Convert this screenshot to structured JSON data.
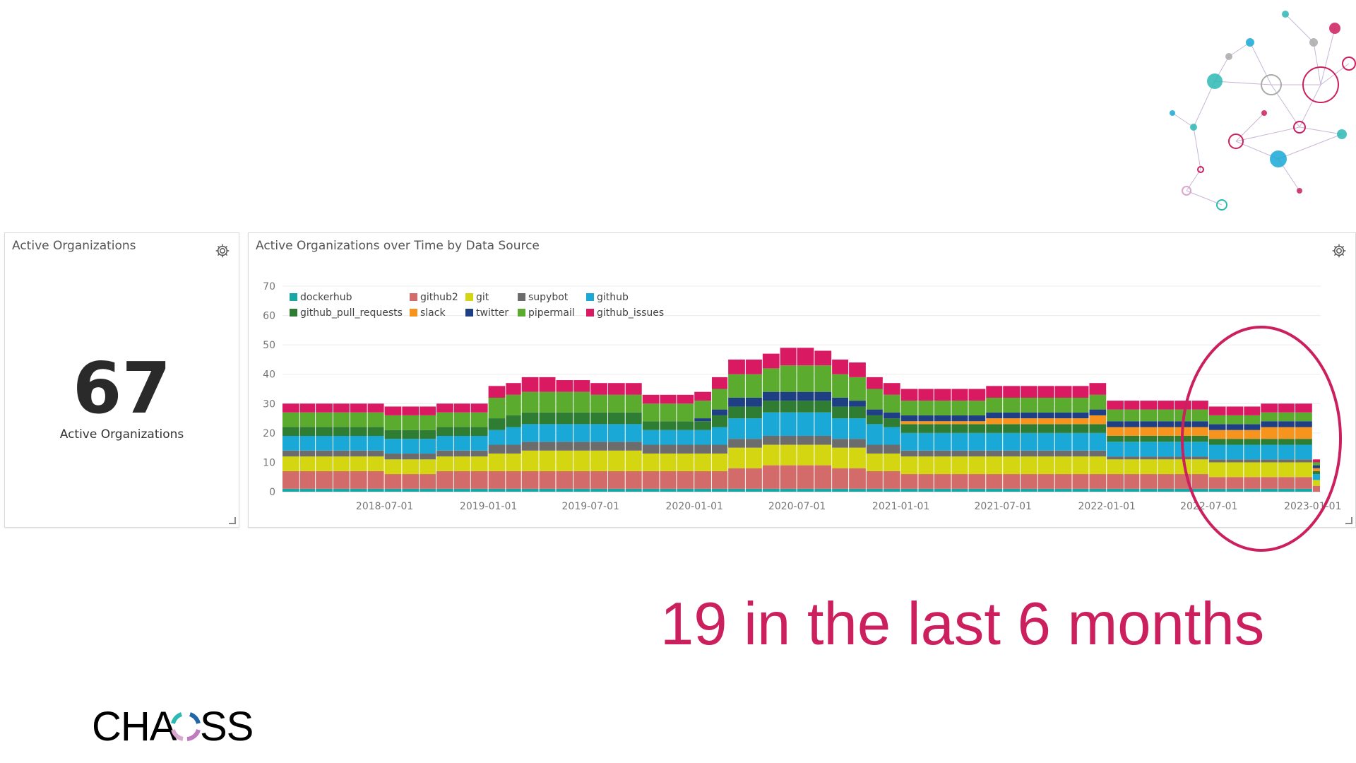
{
  "metric_panel": {
    "title": "Active Organizations",
    "value": "67",
    "label": "Active Organizations"
  },
  "chart_panel": {
    "title": "Active Organizations over Time by Data Source"
  },
  "headline": "19 in the last 6 months",
  "logo": {
    "text_left": "CHA",
    "text_right": "SS"
  },
  "colors": {
    "accent": "#cc1f5e",
    "dockerhub": "#17a7a7",
    "github2": "#d36b6b",
    "git": "#d4d611",
    "supybot": "#6c6c6c",
    "github": "#1aa8d6",
    "github_pull_requests": "#2e7d32",
    "slack": "#f7941d",
    "twitter": "#1f3f85",
    "pipermail": "#5bab2f",
    "github_issues": "#d91a63"
  },
  "chart_data": {
    "type": "bar",
    "stacked": true,
    "xlabel": "",
    "ylabel": "",
    "ylim": [
      0,
      70
    ],
    "yticks": [
      0,
      10,
      20,
      30,
      40,
      50,
      60,
      70
    ],
    "xticks": [
      "2018-07-01",
      "2019-01-01",
      "2019-07-01",
      "2020-01-01",
      "2020-07-01",
      "2021-01-01",
      "2021-07-01",
      "2022-01-01",
      "2022-07-01",
      "2023-01-01"
    ],
    "x_start": "2018-01-01",
    "x_end": "2023-01-15",
    "legend_position": "top-left",
    "legend": [
      "dockerhub",
      "github2",
      "git",
      "supybot",
      "github",
      "github_pull_requests",
      "slack",
      "twitter",
      "pipermail",
      "github_issues"
    ],
    "categories": [
      "2018-01",
      "2018-02",
      "2018-03",
      "2018-04",
      "2018-05",
      "2018-06",
      "2018-07",
      "2018-08",
      "2018-09",
      "2018-10",
      "2018-11",
      "2018-12",
      "2019-01",
      "2019-02",
      "2019-03",
      "2019-04",
      "2019-05",
      "2019-06",
      "2019-07",
      "2019-08",
      "2019-09",
      "2019-10",
      "2019-11",
      "2019-12",
      "2020-01",
      "2020-02",
      "2020-03",
      "2020-04",
      "2020-05",
      "2020-06",
      "2020-07",
      "2020-08",
      "2020-09",
      "2020-10",
      "2020-11",
      "2020-12",
      "2021-01",
      "2021-02",
      "2021-03",
      "2021-04",
      "2021-05",
      "2021-06",
      "2021-07",
      "2021-08",
      "2021-09",
      "2021-10",
      "2021-11",
      "2021-12",
      "2022-01",
      "2022-02",
      "2022-03",
      "2022-04",
      "2022-05",
      "2022-06",
      "2022-07",
      "2022-08",
      "2022-09",
      "2022-10",
      "2022-11",
      "2022-12",
      "2023-01"
    ],
    "series": [
      {
        "name": "dockerhub",
        "values": [
          1,
          1,
          1,
          1,
          1,
          1,
          1,
          1,
          1,
          1,
          1,
          1,
          1,
          1,
          1,
          1,
          1,
          1,
          1,
          1,
          1,
          1,
          1,
          1,
          1,
          1,
          1,
          1,
          1,
          1,
          1,
          1,
          1,
          1,
          1,
          1,
          1,
          1,
          1,
          1,
          1,
          1,
          1,
          1,
          1,
          1,
          1,
          1,
          1,
          1,
          1,
          1,
          1,
          1,
          1,
          1,
          1,
          1,
          1,
          1,
          0
        ]
      },
      {
        "name": "github2",
        "values": [
          6,
          6,
          6,
          6,
          6,
          6,
          5,
          5,
          5,
          6,
          6,
          6,
          6,
          6,
          6,
          6,
          6,
          6,
          6,
          6,
          6,
          6,
          6,
          6,
          6,
          6,
          7,
          7,
          8,
          8,
          8,
          8,
          7,
          7,
          6,
          6,
          5,
          5,
          5,
          5,
          5,
          5,
          5,
          5,
          5,
          5,
          5,
          5,
          5,
          5,
          5,
          5,
          5,
          5,
          4,
          4,
          4,
          4,
          4,
          4,
          2
        ]
      },
      {
        "name": "git",
        "values": [
          5,
          5,
          5,
          5,
          5,
          5,
          5,
          5,
          5,
          5,
          5,
          5,
          6,
          6,
          7,
          7,
          7,
          7,
          7,
          7,
          7,
          6,
          6,
          6,
          6,
          6,
          7,
          7,
          7,
          7,
          7,
          7,
          7,
          7,
          6,
          6,
          6,
          6,
          6,
          6,
          6,
          6,
          6,
          6,
          6,
          6,
          6,
          6,
          5,
          5,
          5,
          5,
          5,
          5,
          5,
          5,
          5,
          5,
          5,
          5,
          2
        ]
      },
      {
        "name": "supybot",
        "values": [
          2,
          2,
          2,
          2,
          2,
          2,
          2,
          2,
          2,
          2,
          2,
          2,
          3,
          3,
          3,
          3,
          3,
          3,
          3,
          3,
          3,
          3,
          3,
          3,
          3,
          3,
          3,
          3,
          3,
          3,
          3,
          3,
          3,
          3,
          3,
          3,
          2,
          2,
          2,
          2,
          2,
          2,
          2,
          2,
          2,
          2,
          2,
          2,
          1,
          1,
          1,
          1,
          1,
          1,
          1,
          1,
          1,
          1,
          1,
          1,
          0
        ]
      },
      {
        "name": "github",
        "values": [
          5,
          5,
          5,
          5,
          5,
          5,
          5,
          5,
          5,
          5,
          5,
          5,
          5,
          6,
          6,
          6,
          6,
          6,
          6,
          6,
          6,
          5,
          5,
          5,
          5,
          6,
          7,
          7,
          8,
          8,
          8,
          8,
          7,
          7,
          7,
          6,
          6,
          6,
          6,
          6,
          6,
          6,
          6,
          6,
          6,
          6,
          6,
          6,
          5,
          5,
          5,
          5,
          5,
          5,
          5,
          5,
          5,
          5,
          5,
          5,
          2
        ]
      },
      {
        "name": "github_pull_requests",
        "values": [
          3,
          3,
          3,
          3,
          3,
          3,
          3,
          3,
          3,
          3,
          3,
          3,
          4,
          4,
          4,
          4,
          4,
          4,
          4,
          4,
          4,
          3,
          3,
          3,
          3,
          4,
          4,
          4,
          4,
          4,
          4,
          4,
          4,
          4,
          3,
          3,
          3,
          3,
          3,
          3,
          3,
          3,
          3,
          3,
          3,
          3,
          3,
          3,
          2,
          2,
          2,
          2,
          2,
          2,
          2,
          2,
          2,
          2,
          2,
          2,
          1
        ]
      },
      {
        "name": "slack",
        "values": [
          0,
          0,
          0,
          0,
          0,
          0,
          0,
          0,
          0,
          0,
          0,
          0,
          0,
          0,
          0,
          0,
          0,
          0,
          0,
          0,
          0,
          0,
          0,
          0,
          0,
          0,
          0,
          0,
          0,
          0,
          0,
          0,
          0,
          0,
          0,
          0,
          1,
          1,
          1,
          1,
          1,
          2,
          2,
          2,
          2,
          2,
          2,
          3,
          3,
          3,
          3,
          3,
          3,
          3,
          3,
          3,
          3,
          4,
          4,
          4,
          1
        ]
      },
      {
        "name": "twitter",
        "values": [
          0,
          0,
          0,
          0,
          0,
          0,
          0,
          0,
          0,
          0,
          0,
          0,
          0,
          0,
          0,
          0,
          0,
          0,
          0,
          0,
          0,
          0,
          0,
          0,
          1,
          2,
          3,
          3,
          3,
          3,
          3,
          3,
          3,
          2,
          2,
          2,
          2,
          2,
          2,
          2,
          2,
          2,
          2,
          2,
          2,
          2,
          2,
          2,
          2,
          2,
          2,
          2,
          2,
          2,
          2,
          2,
          2,
          2,
          2,
          2,
          1
        ]
      },
      {
        "name": "pipermail",
        "values": [
          5,
          5,
          5,
          5,
          5,
          5,
          5,
          5,
          5,
          5,
          5,
          5,
          7,
          7,
          7,
          7,
          7,
          7,
          6,
          6,
          6,
          6,
          6,
          6,
          6,
          7,
          8,
          8,
          8,
          9,
          9,
          9,
          8,
          8,
          7,
          6,
          5,
          5,
          5,
          5,
          5,
          5,
          5,
          5,
          5,
          5,
          5,
          5,
          4,
          4,
          4,
          4,
          4,
          4,
          3,
          3,
          3,
          3,
          3,
          3,
          1
        ]
      },
      {
        "name": "github_issues",
        "values": [
          3,
          3,
          3,
          3,
          3,
          3,
          3,
          3,
          3,
          3,
          3,
          3,
          4,
          4,
          5,
          5,
          4,
          4,
          4,
          4,
          4,
          3,
          3,
          3,
          3,
          4,
          5,
          5,
          5,
          6,
          6,
          5,
          5,
          5,
          4,
          4,
          4,
          4,
          4,
          4,
          4,
          4,
          4,
          4,
          4,
          4,
          4,
          4,
          3,
          3,
          3,
          3,
          3,
          3,
          3,
          3,
          3,
          3,
          3,
          3,
          1
        ]
      }
    ]
  }
}
